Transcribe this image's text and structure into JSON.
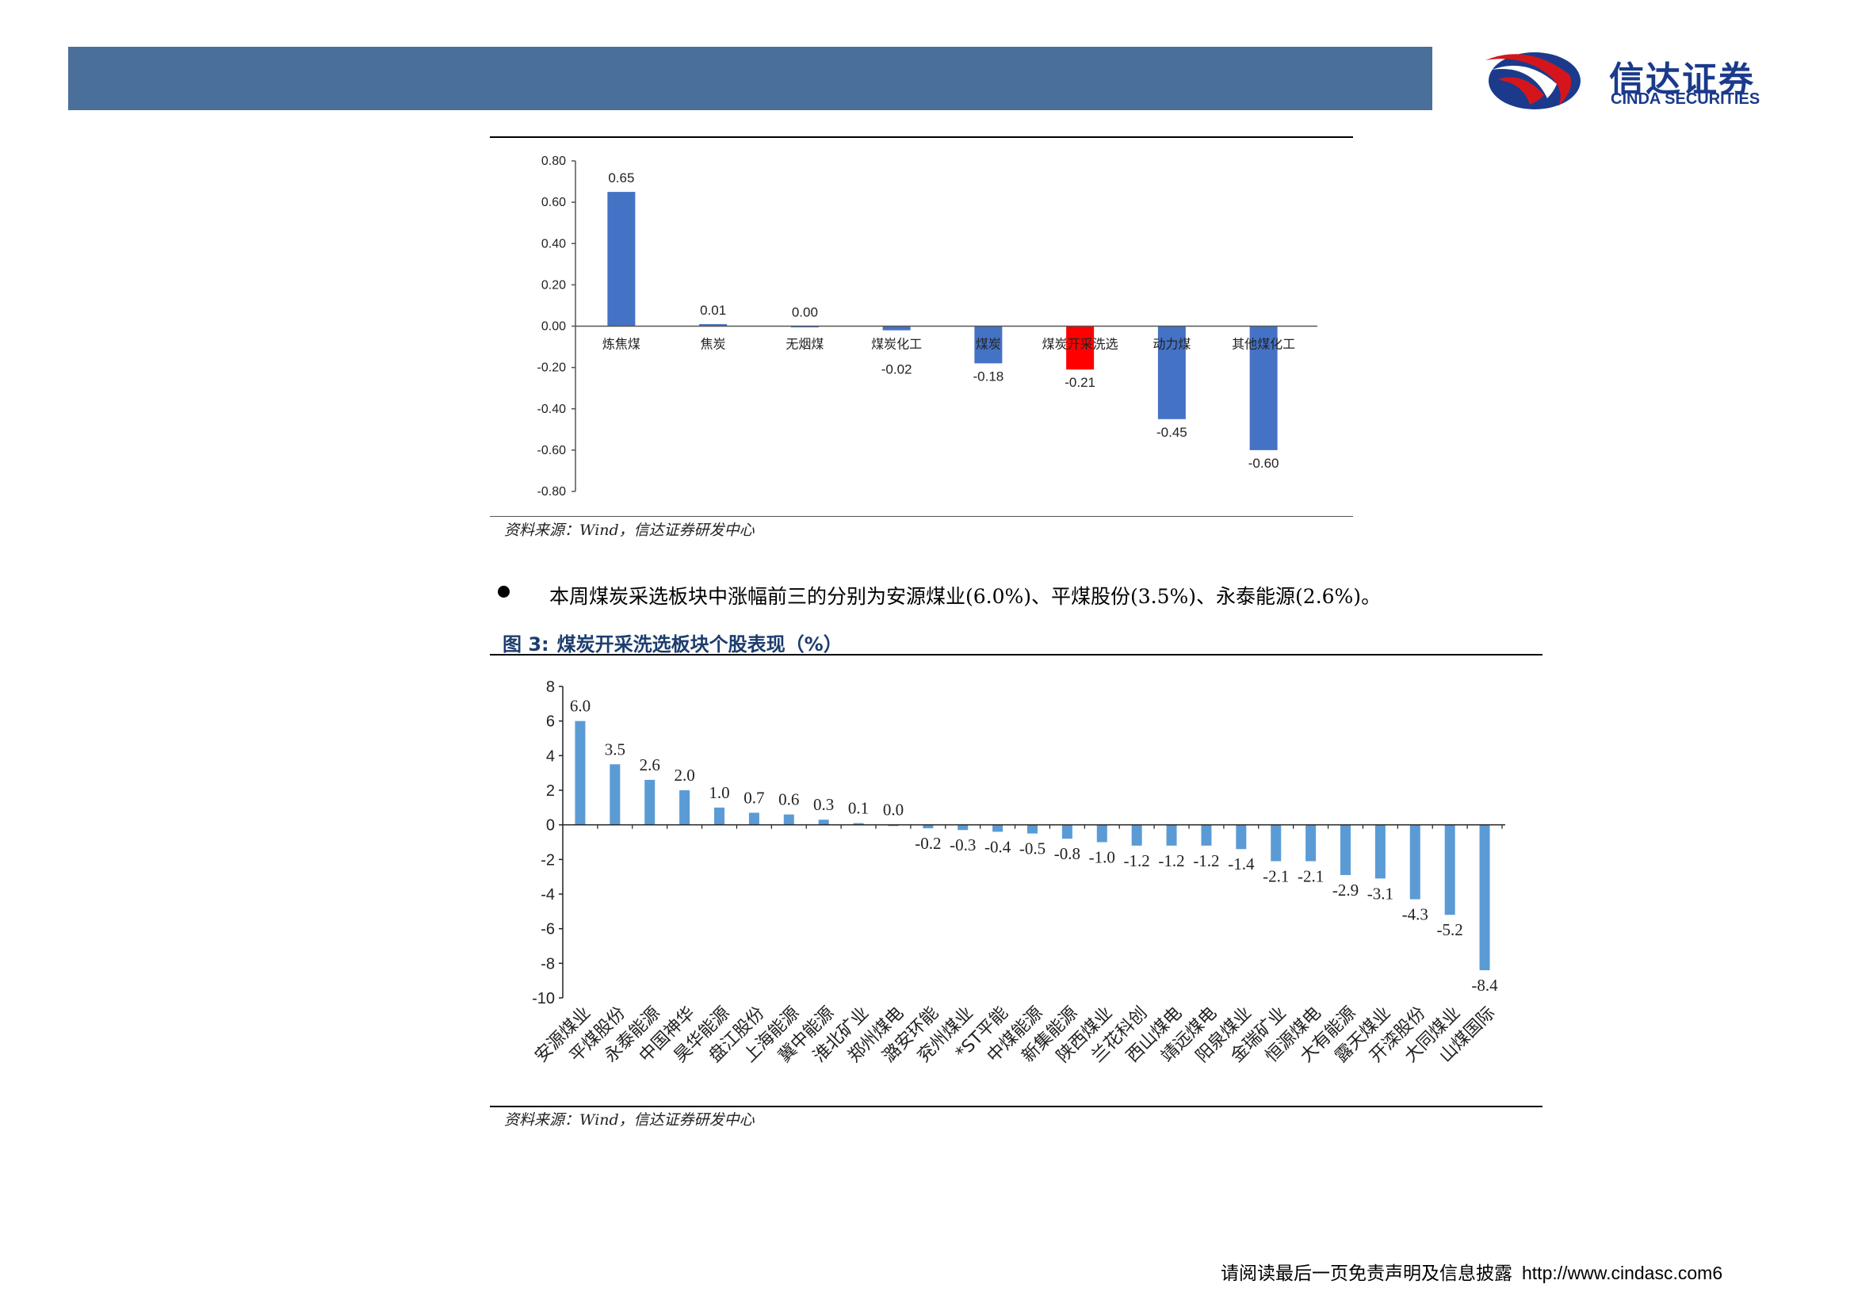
{
  "header": {
    "logo_cn": "信达证券",
    "logo_en": "CINDA SECURITIES",
    "brand_colors": {
      "bar": "#4a6f9a",
      "logo_blue": "#1b3a8c",
      "logo_red": "#d4161c"
    }
  },
  "chart1_source": "资料来源：Wind，信达证券研发中心",
  "bullet_text": "本周煤炭采选板块中涨幅前三的分别为安源煤业(6.0%)、平煤股份(3.5%)、永泰能源(2.6%)。",
  "figure3": {
    "label": "图 3:",
    "title": "煤炭开采洗选板块个股表现（%）"
  },
  "chart2_source": "资料来源：Wind，信达证券研发中心",
  "footer": {
    "disclaimer": "请阅读最后一页免责声明及信息披露",
    "url": "http://www.cindasc.com",
    "page": "6"
  },
  "chart_data": [
    {
      "type": "bar",
      "categories": [
        "炼焦煤",
        "焦炭",
        "无烟煤",
        "煤炭化工",
        "煤炭",
        "煤炭开采洗选",
        "动力煤",
        "其他煤化工"
      ],
      "values": [
        0.65,
        0.01,
        0.0,
        -0.02,
        -0.18,
        -0.21,
        -0.45,
        -0.6
      ],
      "value_labels": [
        "0.65",
        "0.01",
        "0.00",
        "-0.02",
        "-0.18",
        "-0.21",
        "-0.45",
        "-0.60"
      ],
      "highlight_index": 5,
      "colors": {
        "bar": "#4472c4",
        "highlight": "#ff0000"
      },
      "ylim": [
        -0.8,
        0.8
      ],
      "yticks": [
        "0.80",
        "0.60",
        "0.40",
        "0.20",
        "0.00",
        "-0.20",
        "-0.40",
        "-0.60",
        "-0.80"
      ],
      "ytick_values": [
        0.8,
        0.6,
        0.4,
        0.2,
        0.0,
        -0.2,
        -0.4,
        -0.6,
        -0.8
      ],
      "title": "",
      "xlabel": "",
      "ylabel": "",
      "grid": false
    },
    {
      "type": "bar",
      "categories": [
        "安源煤业",
        "平煤股份",
        "永泰能源",
        "中国神华",
        "昊华能源",
        "盘江股份",
        "上海能源",
        "冀中能源",
        "淮北矿业",
        "郑州煤电",
        "潞安环能",
        "兖州煤业",
        "*ST平能",
        "中煤能源",
        "新集能源",
        "陕西煤业",
        "兰花科创",
        "西山煤电",
        "靖远煤电",
        "阳泉煤业",
        "金瑞矿业",
        "恒源煤电",
        "大有能源",
        "露天煤业",
        "开滦股份",
        "大同煤业",
        "山煤国际"
      ],
      "values": [
        6.0,
        3.5,
        2.6,
        2.0,
        1.0,
        0.7,
        0.6,
        0.3,
        0.1,
        0.0,
        -0.2,
        -0.3,
        -0.4,
        -0.5,
        -0.8,
        -1.0,
        -1.2,
        -1.2,
        -1.2,
        -1.4,
        -2.1,
        -2.1,
        -2.9,
        -3.1,
        -4.3,
        -5.2,
        -8.4
      ],
      "value_labels": [
        "6.0",
        "3.5",
        "2.6",
        "2.0",
        "1.0",
        "0.7",
        "0.6",
        "0.3",
        "0.1",
        "0.0",
        "-0.2",
        "-0.3",
        "-0.4",
        "-0.5",
        "-0.8",
        "-1.0",
        "-1.2",
        "-1.2",
        "-1.2",
        "-1.4",
        "-2.1",
        "-2.1",
        "-2.9",
        "-3.1",
        "-4.3",
        "-5.2",
        "-8.4"
      ],
      "colors": {
        "bar": "#5b9bd5"
      },
      "ylim": [
        -10,
        8
      ],
      "yticks": [
        "8",
        "6",
        "4",
        "2",
        "0",
        "-2",
        "-4",
        "-6",
        "-8",
        "-10"
      ],
      "ytick_values": [
        8,
        6,
        4,
        2,
        0,
        -2,
        -4,
        -6,
        -8,
        -10
      ],
      "title": "",
      "xlabel": "",
      "ylabel": "",
      "grid": false
    }
  ]
}
